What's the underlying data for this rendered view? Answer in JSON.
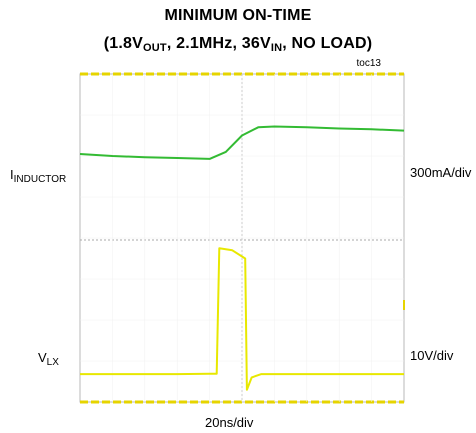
{
  "chart_data": {
    "type": "line",
    "title": "MINIMUM ON-TIME",
    "subtitle": {
      "p1": "(1.8V",
      "s1": "OUT",
      "p2": ", 2.1MHz, 36V",
      "s2": "IN",
      "p3": ", NO LOAD)"
    },
    "tag": "toc13",
    "x_scale_label": "20ns/div",
    "traces": [
      {
        "name_main": "I",
        "name_sub": "INDUCTOR",
        "scale_label": "300mA/div",
        "color": "#33bb33",
        "unit": "div",
        "x": [
          0,
          1.0,
          2.0,
          3.0,
          4.0,
          4.5,
          5.0,
          5.5,
          6.0,
          7.0,
          8.0,
          9.0,
          10.0
        ],
        "y": [
          6.05,
          6.0,
          5.97,
          5.95,
          5.93,
          6.1,
          6.5,
          6.7,
          6.72,
          6.7,
          6.67,
          6.65,
          6.62
        ]
      },
      {
        "name_main": "V",
        "name_sub": "LX",
        "scale_label": "10V/div",
        "color": "#e8e800",
        "unit": "div",
        "x": [
          0,
          1.0,
          2.0,
          3.0,
          4.0,
          4.22,
          4.3,
          4.7,
          5.1,
          5.15,
          5.3,
          5.6,
          6.0,
          7.0,
          8.0,
          9.0,
          10.0
        ],
        "y": [
          0.68,
          0.68,
          0.68,
          0.68,
          0.69,
          0.69,
          3.75,
          3.7,
          3.5,
          0.3,
          0.6,
          0.68,
          0.68,
          0.68,
          0.68,
          0.68,
          0.68
        ]
      }
    ],
    "xlim": [
      0,
      10
    ],
    "ylim": [
      0,
      8
    ],
    "grid": true,
    "center_crosshair": true
  }
}
